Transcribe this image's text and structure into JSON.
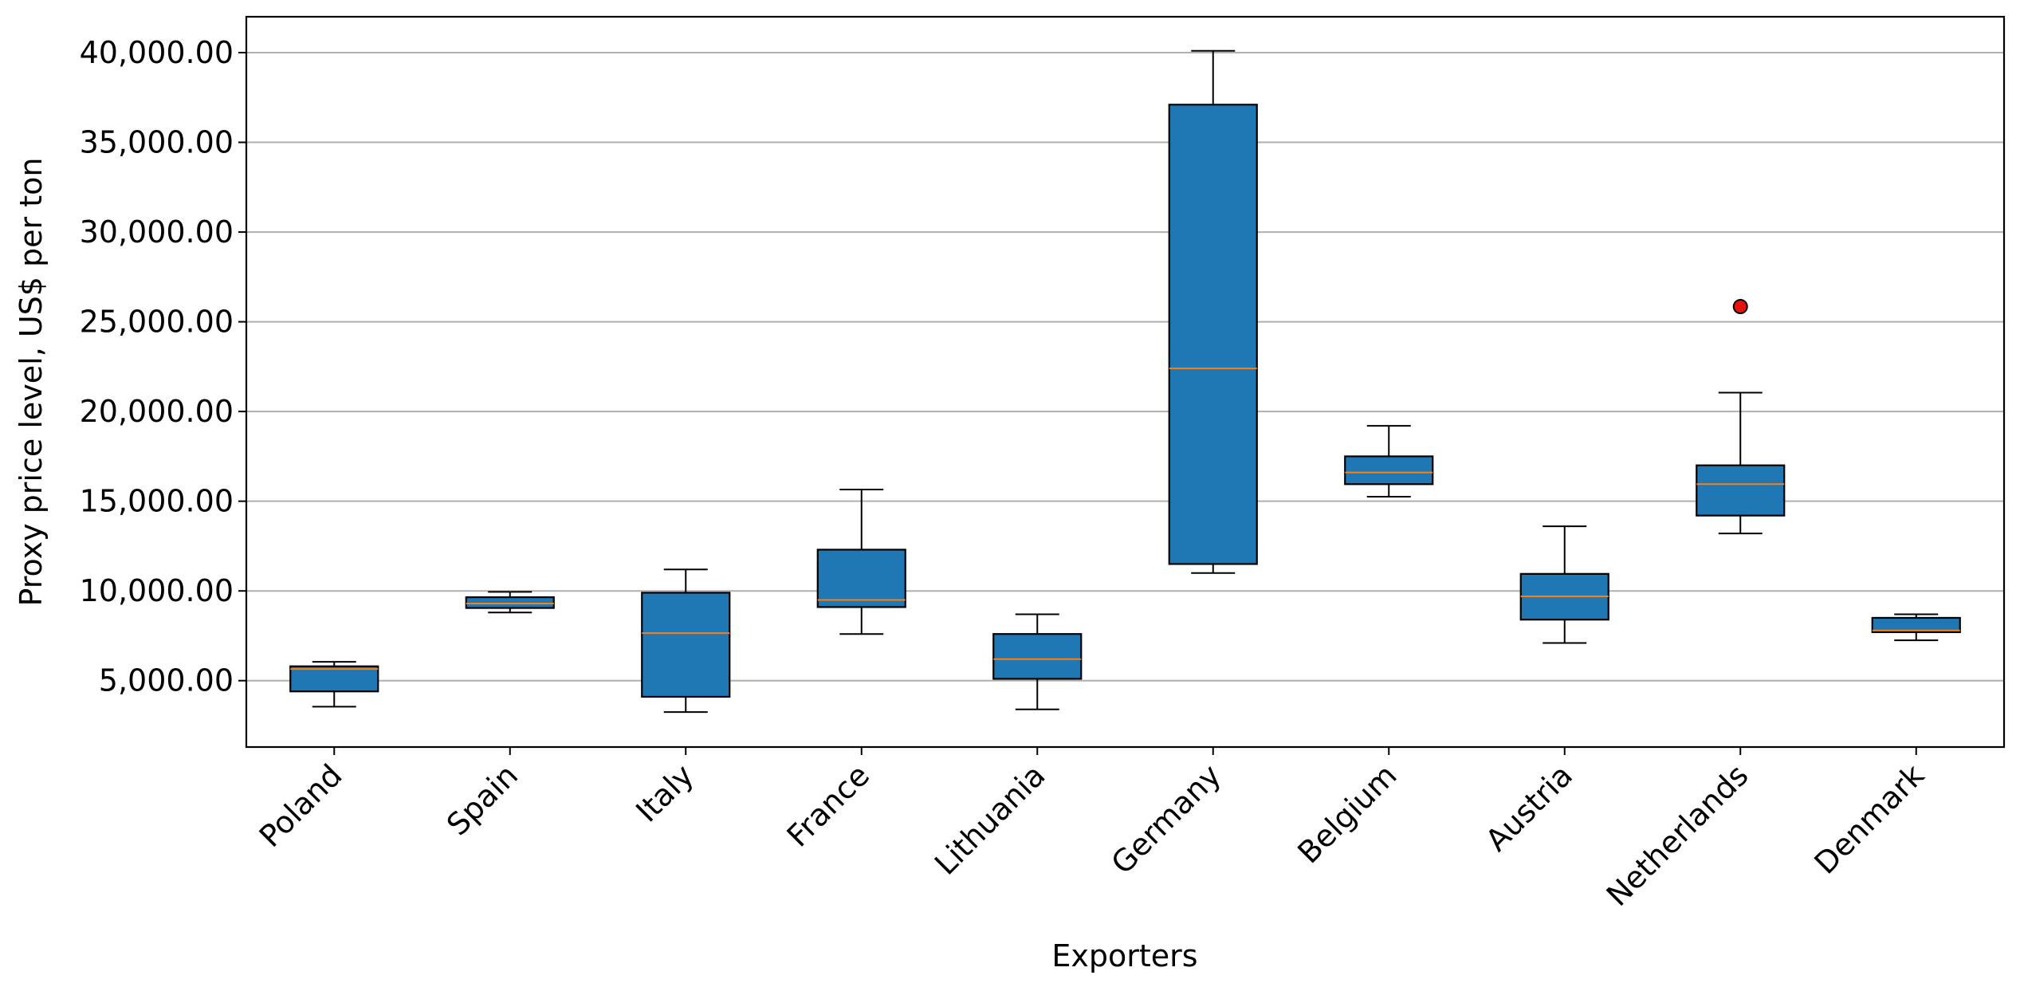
{
  "chart_data": {
    "type": "box",
    "title": "",
    "xlabel": "Exporters",
    "ylabel": "Proxy price level, US$ per ton",
    "ylim": [
      1300,
      42000
    ],
    "yticks": [
      5000,
      10000,
      15000,
      20000,
      25000,
      30000,
      35000,
      40000
    ],
    "ytick_labels": [
      "5,000.00",
      "10,000.00",
      "15,000.00",
      "20,000.00",
      "25,000.00",
      "30,000.00",
      "35,000.00",
      "40,000.00"
    ],
    "grid": "y",
    "colors": {
      "box_fill": "#1f77b4",
      "median": "#ff7f0e",
      "outlier": "#e8120c",
      "grid": "#b0b0b0"
    },
    "categories": [
      "Poland",
      "Spain",
      "Italy",
      "France",
      "Lithuania",
      "Germany",
      "Belgium",
      "Austria",
      "Netherlands",
      "Denmark"
    ],
    "boxes": [
      {
        "whisker_low": 3550,
        "q1": 4400,
        "median": 5650,
        "q3": 5800,
        "whisker_high": 6050,
        "outliers": []
      },
      {
        "whisker_low": 8800,
        "q1": 9050,
        "median": 9300,
        "q3": 9650,
        "whisker_high": 9950,
        "outliers": []
      },
      {
        "whisker_low": 3250,
        "q1": 4100,
        "median": 7650,
        "q3": 9900,
        "whisker_high": 11200,
        "outliers": []
      },
      {
        "whisker_low": 7600,
        "q1": 9100,
        "median": 9500,
        "q3": 12300,
        "whisker_high": 15650,
        "outliers": []
      },
      {
        "whisker_low": 3400,
        "q1": 5100,
        "median": 6200,
        "q3": 7600,
        "whisker_high": 8700,
        "outliers": []
      },
      {
        "whisker_low": 11000,
        "q1": 11500,
        "median": 22400,
        "q3": 37100,
        "whisker_high": 40100,
        "outliers": []
      },
      {
        "whisker_low": 15250,
        "q1": 15950,
        "median": 16600,
        "q3": 17500,
        "whisker_high": 19200,
        "outliers": []
      },
      {
        "whisker_low": 7100,
        "q1": 8400,
        "median": 9700,
        "q3": 10950,
        "whisker_high": 13600,
        "outliers": []
      },
      {
        "whisker_low": 13200,
        "q1": 14200,
        "median": 15950,
        "q3": 17000,
        "whisker_high": 21050,
        "outliers": [
          25850
        ]
      },
      {
        "whisker_low": 7250,
        "q1": 7700,
        "median": 7800,
        "q3": 8500,
        "whisker_high": 8700,
        "outliers": []
      }
    ]
  }
}
